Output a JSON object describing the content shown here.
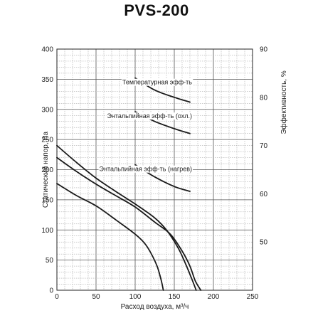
{
  "chart_data": {
    "type": "line",
    "title": "PVS-200",
    "xlabel": "Расход воздуха, м³/ч",
    "ylabel": "Статический напор, Па",
    "y2label": "Эффективность, %",
    "xlim": [
      0,
      250
    ],
    "ylim": [
      0,
      400
    ],
    "y2lim": [
      40,
      90
    ],
    "x_ticks": [
      0,
      50,
      100,
      150,
      200,
      250
    ],
    "y_ticks": [
      0,
      50,
      100,
      150,
      200,
      250,
      300,
      350,
      400
    ],
    "y2_ticks": [
      50,
      60,
      70,
      80,
      90
    ],
    "grid": true,
    "pressure_series": [
      {
        "points": [
          [
            0,
            240
          ],
          [
            25,
            212
          ],
          [
            50,
            186
          ],
          [
            75,
            164
          ],
          [
            100,
            143
          ],
          [
            125,
            120
          ],
          [
            140,
            100
          ],
          [
            155,
            70
          ],
          [
            165,
            42
          ],
          [
            172,
            20
          ],
          [
            178,
            0
          ]
        ]
      },
      {
        "points": [
          [
            0,
            220
          ],
          [
            25,
            197
          ],
          [
            50,
            176
          ],
          [
            75,
            157
          ],
          [
            100,
            138
          ],
          [
            125,
            113
          ],
          [
            145,
            93
          ],
          [
            160,
            65
          ],
          [
            170,
            40
          ],
          [
            177,
            15
          ],
          [
            184,
            0
          ]
        ]
      },
      {
        "points": [
          [
            0,
            177
          ],
          [
            25,
            157
          ],
          [
            50,
            140
          ],
          [
            75,
            117
          ],
          [
            100,
            93
          ],
          [
            112,
            78
          ],
          [
            120,
            62
          ],
          [
            128,
            40
          ],
          [
            133,
            18
          ],
          [
            136,
            0
          ]
        ]
      }
    ],
    "efficiency_series": [
      {
        "label": "Температурная эфф-ть",
        "points": [
          [
            100,
            84
          ],
          [
            125,
            81.5
          ],
          [
            150,
            80
          ],
          [
            170,
            79
          ]
        ]
      },
      {
        "label": "Энтальпийная эфф-ть (охл.)",
        "points": [
          [
            100,
            77
          ],
          [
            125,
            75
          ],
          [
            150,
            73.5
          ],
          [
            170,
            72.5
          ]
        ]
      },
      {
        "label": "Энтальпийная эфф-ть (нагрев)",
        "points": [
          [
            100,
            66
          ],
          [
            125,
            63.5
          ],
          [
            150,
            61.5
          ],
          [
            170,
            60.5
          ]
        ]
      }
    ]
  }
}
